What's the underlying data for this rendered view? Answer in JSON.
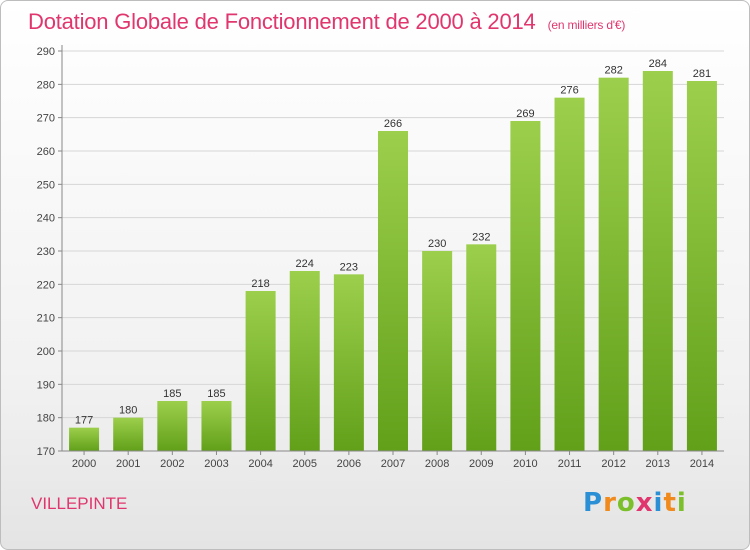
{
  "chart_data": {
    "type": "bar",
    "title": "Dotation Globale de Fonctionnement de 2000 à 2014",
    "subtitle": "(en milliers d'€)",
    "categories": [
      "2000",
      "2001",
      "2002",
      "2003",
      "2004",
      "2005",
      "2006",
      "2007",
      "2008",
      "2009",
      "2010",
      "2011",
      "2012",
      "2013",
      "2014"
    ],
    "values": [
      177,
      180,
      185,
      185,
      218,
      224,
      223,
      266,
      230,
      232,
      269,
      276,
      282,
      284,
      281
    ],
    "ylim": [
      170,
      290
    ],
    "yticks": [
      170,
      180,
      190,
      200,
      210,
      220,
      230,
      240,
      250,
      260,
      270,
      280,
      290
    ],
    "grid": true,
    "bar_color_top": "#9ccf4c",
    "bar_color_bottom": "#62a01a"
  },
  "place": "VILLEPINTE",
  "logo": {
    "letters": [
      {
        "char": "P",
        "color": "#2a8fd4"
      },
      {
        "char": "r",
        "color": "#f08a1c"
      },
      {
        "char": "o",
        "color": "#7bbf2a"
      },
      {
        "char": "x",
        "color": "#e0366d"
      },
      {
        "char": "i",
        "color": "#2a8fd4"
      },
      {
        "char": "t",
        "color": "#f08a1c"
      },
      {
        "char": "i",
        "color": "#7bbf2a"
      }
    ]
  }
}
